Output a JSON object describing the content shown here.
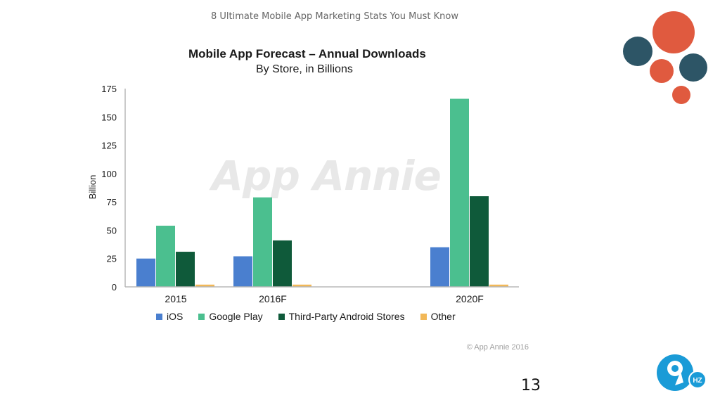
{
  "slide": {
    "header": "8 Ultimate Mobile App Marketing Stats You Must Know",
    "page_number": "13",
    "colors": {
      "deco_red": "#e05a3f",
      "deco_navy": "#2d5566"
    }
  },
  "chart_data": {
    "type": "bar",
    "title": "Mobile App Forecast – Annual Downloads",
    "subtitle": "By Store, in Billions",
    "ylabel": "Billion",
    "xlabel": "",
    "ylim": [
      0,
      175
    ],
    "yticks": [
      "0",
      "25",
      "50",
      "75",
      "100",
      "125",
      "150",
      "175"
    ],
    "categories": [
      "2015",
      "2016F",
      "2020F"
    ],
    "series": [
      {
        "name": "iOS",
        "color": "#4a7fcf",
        "values": [
          25,
          27,
          35
        ]
      },
      {
        "name": "Google Play",
        "color": "#4bbf8f",
        "values": [
          54,
          79,
          166
        ]
      },
      {
        "name": "Third-Party Android Stores",
        "color": "#0f5a3a",
        "values": [
          31,
          41,
          80
        ]
      },
      {
        "name": "Other",
        "color": "#f2b857",
        "values": [
          2,
          2,
          2
        ]
      }
    ],
    "grid": false,
    "legend_placement": "bottom",
    "watermark": "App Annie",
    "copyright": "© App Annie 2016"
  }
}
